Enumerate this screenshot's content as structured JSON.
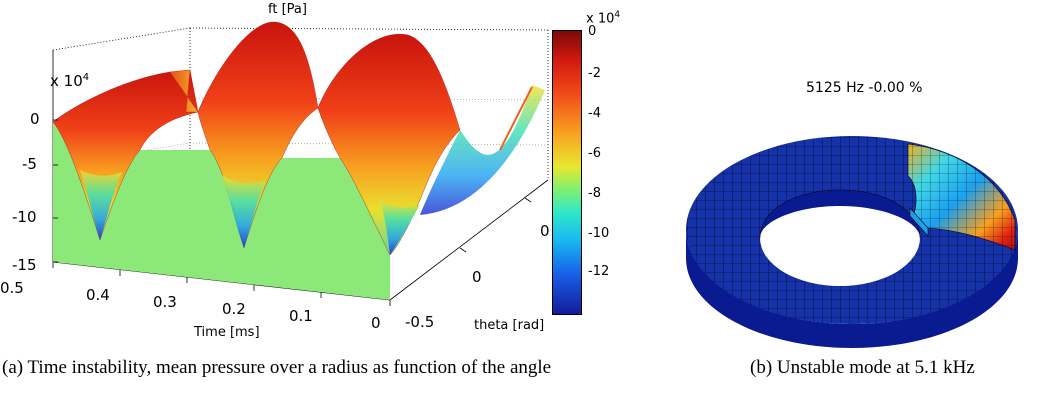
{
  "figure_a": {
    "title": "ft [Pa]",
    "scale": {
      "base": "x 10",
      "exp": "4"
    },
    "z_ticks": [
      "0",
      "-5",
      "-10",
      "-15"
    ],
    "time_ticks": [
      "0.5",
      "0.4",
      "0.3",
      "0.2",
      "0.1",
      "0"
    ],
    "time_label": "Time [ms]",
    "theta_ticks": [
      "0",
      "0",
      "-0.5"
    ],
    "theta_label": "theta [rad]",
    "colorbar": {
      "scale": {
        "base": "x 10",
        "exp": "4"
      },
      "ticks": [
        "0",
        "-2",
        "-4",
        "-6",
        "-8",
        "-10",
        "-12"
      ]
    },
    "caption": "(a) Time instability, mean pressure over a radius as function of the angle"
  },
  "figure_b": {
    "title": "5125 Hz -0.00 %",
    "caption": "(b) Unstable mode at 5.1 kHz"
  },
  "colors": {
    "wall": "#8ce878",
    "ridge_red": "#d01a10",
    "ridge_orange": "#f07a18",
    "trough_blue": "#1a3ad8",
    "ring_dark": "#0a1a90",
    "ring_mid": "#1532a8"
  }
}
